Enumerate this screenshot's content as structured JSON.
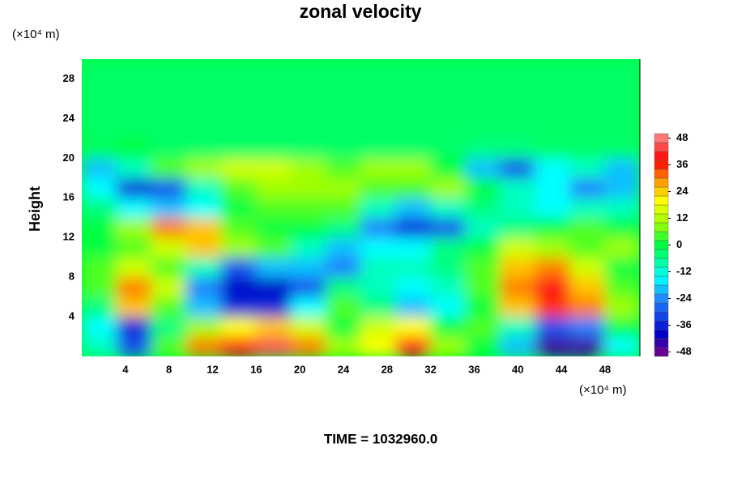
{
  "chart_data": {
    "type": "heatmap",
    "title": "zonal velocity",
    "x_unit": "(×10⁴ m)",
    "y_unit": "(×10⁴ m)",
    "y_label": "Height",
    "annotation": "TIME = 1032960.0",
    "xlim": [
      0,
      51.2
    ],
    "ylim": [
      0,
      30
    ],
    "zlim": [
      -50,
      50
    ],
    "xticks": [
      4,
      8,
      12,
      16,
      20,
      24,
      28,
      32,
      36,
      40,
      44,
      48
    ],
    "yticks": [
      4,
      8,
      12,
      16,
      20,
      24,
      28
    ],
    "zticks": [
      -48,
      -36,
      -24,
      -12,
      0,
      12,
      24,
      36,
      48
    ],
    "z": [
      [
        -10,
        -30,
        5,
        30,
        40,
        45,
        30,
        10,
        20,
        40,
        10,
        0,
        -20,
        -45,
        -45,
        -15
      ],
      [
        -15,
        -35,
        -5,
        10,
        20,
        25,
        15,
        0,
        15,
        20,
        0,
        5,
        -10,
        -30,
        -25,
        0
      ],
      [
        -5,
        25,
        5,
        -20,
        -35,
        -35,
        -15,
        5,
        -5,
        -20,
        -15,
        0,
        25,
        35,
        30,
        10
      ],
      [
        5,
        30,
        15,
        -25,
        -40,
        -40,
        -30,
        -5,
        -10,
        -15,
        -10,
        5,
        30,
        40,
        25,
        5
      ],
      [
        5,
        15,
        5,
        -10,
        -30,
        -20,
        -20,
        -25,
        -10,
        -10,
        -5,
        5,
        25,
        30,
        15,
        0
      ],
      [
        0,
        5,
        15,
        25,
        10,
        5,
        -10,
        -20,
        -15,
        -15,
        -5,
        0,
        15,
        10,
        5,
        10
      ],
      [
        0,
        10,
        30,
        25,
        5,
        0,
        0,
        -5,
        -25,
        -35,
        -30,
        -10,
        -5,
        0,
        5,
        0
      ],
      [
        -5,
        -15,
        -20,
        -15,
        0,
        5,
        5,
        5,
        -10,
        -20,
        -10,
        -5,
        -10,
        -15,
        -10,
        -10
      ],
      [
        -15,
        -35,
        -30,
        -10,
        5,
        10,
        10,
        10,
        5,
        5,
        10,
        0,
        -10,
        -15,
        -25,
        -20
      ],
      [
        -20,
        -10,
        5,
        10,
        15,
        15,
        10,
        5,
        10,
        10,
        0,
        -20,
        -30,
        -15,
        -10,
        -20
      ],
      [
        -2,
        0,
        -3,
        -3,
        -3,
        -3,
        -3,
        -3,
        -3,
        -3,
        -3,
        -5,
        -5,
        -3,
        -3,
        -3
      ],
      [
        -3,
        -3,
        -3,
        -3,
        -3,
        -3,
        -3,
        -3,
        -3,
        -3,
        -3,
        -3,
        -3,
        -3,
        -3,
        -3
      ],
      [
        -3,
        -3,
        -3,
        -3,
        -3,
        -3,
        -3,
        -3,
        -3,
        -3,
        -3,
        -3,
        -3,
        -3,
        -3,
        -3
      ],
      [
        -3,
        -3,
        -3,
        -3,
        -3,
        -3,
        -3,
        -3,
        -3,
        -3,
        -3,
        -3,
        -3,
        -3,
        -3,
        -3
      ],
      [
        -3,
        -3,
        -3,
        -3,
        -3,
        -3,
        -3,
        -3,
        -3,
        -3,
        -3,
        -3,
        -3,
        -3,
        -3,
        -3
      ]
    ]
  }
}
